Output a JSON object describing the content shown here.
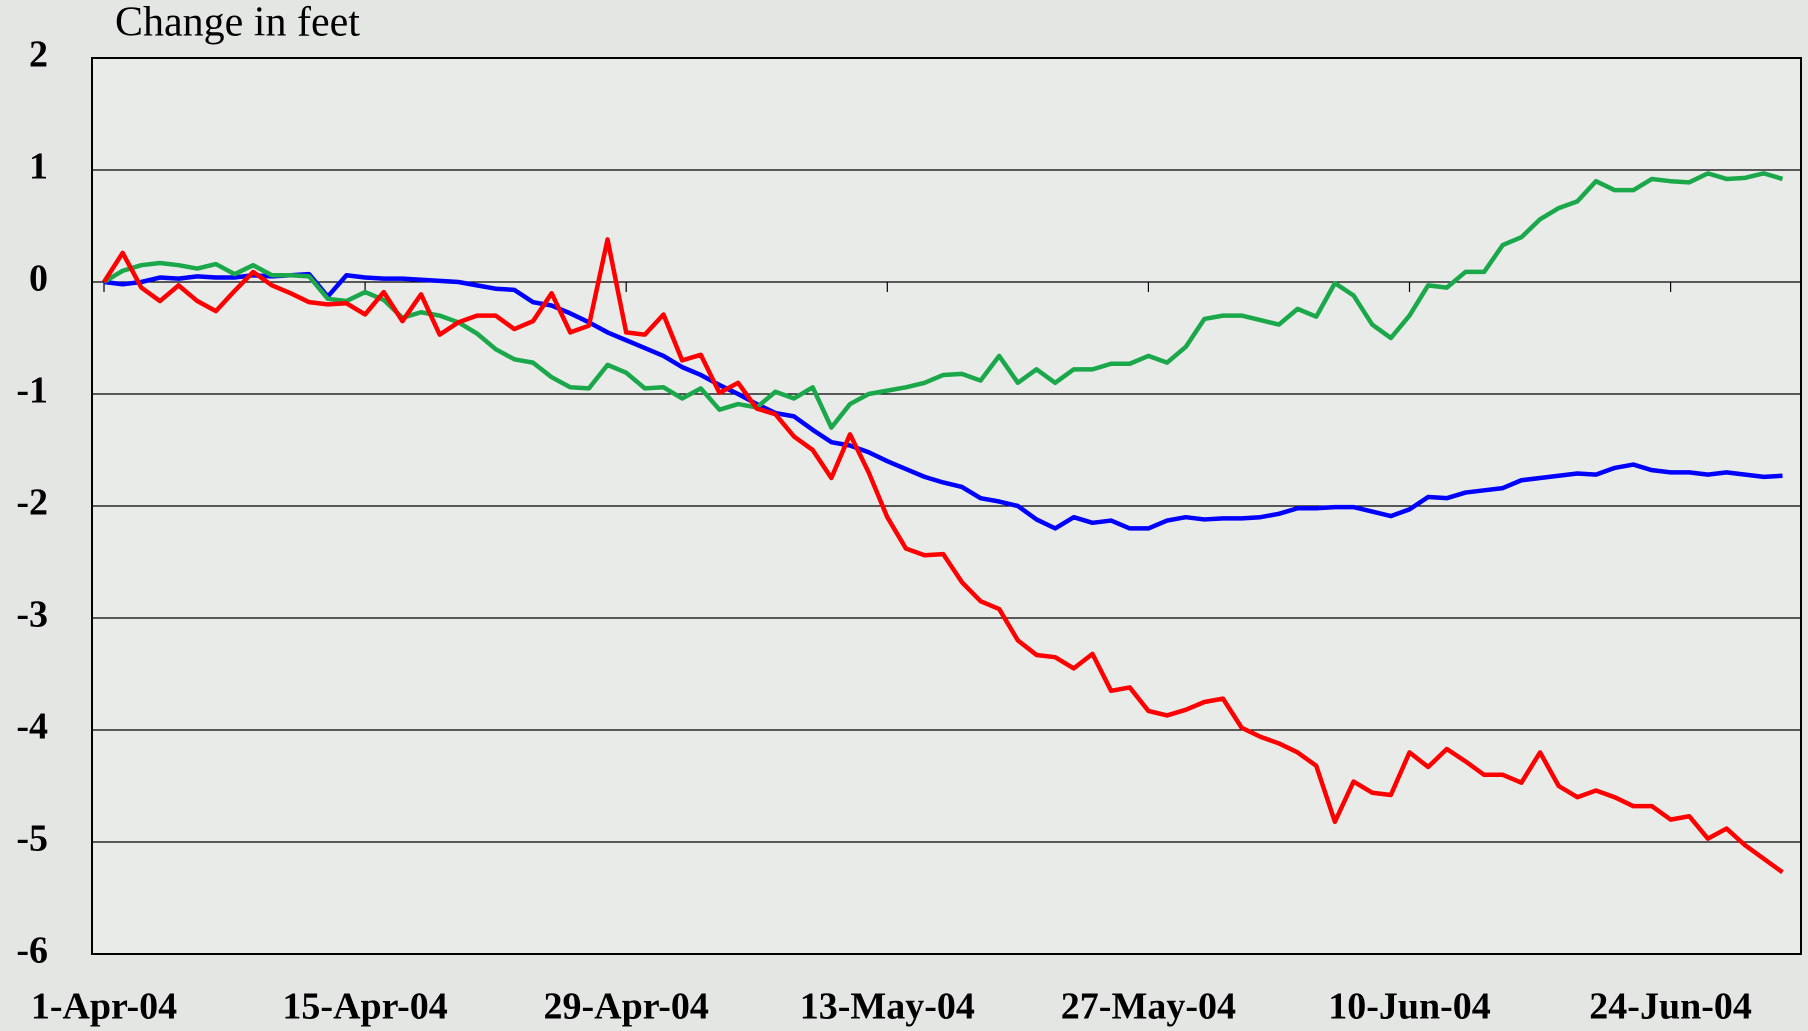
{
  "chart_data": {
    "type": "line",
    "ylabel": "Change in feet",
    "categories": [
      "1-Apr-04",
      null,
      null,
      null,
      null,
      null,
      null,
      null,
      null,
      null,
      null,
      null,
      null,
      null,
      "15-Apr-04",
      null,
      null,
      null,
      null,
      null,
      null,
      null,
      null,
      null,
      null,
      null,
      null,
      null,
      "29-Apr-04",
      null,
      null,
      null,
      null,
      null,
      null,
      null,
      null,
      null,
      null,
      null,
      null,
      null,
      "13-May-04",
      null,
      null,
      null,
      null,
      null,
      null,
      null,
      null,
      null,
      null,
      null,
      null,
      null,
      "27-May-04",
      null,
      null,
      null,
      null,
      null,
      null,
      null,
      null,
      null,
      null,
      null,
      null,
      null,
      "10-Jun-04",
      null,
      null,
      null,
      null,
      null,
      null,
      null,
      null,
      null,
      null,
      null,
      null,
      null,
      "24-Jun-04",
      null,
      null,
      null,
      null,
      null,
      null
    ],
    "series": [
      {
        "color": "#0000ff",
        "values": [
          0,
          -0.02,
          0,
          0.04,
          0.03,
          0.05,
          0.04,
          0.04,
          0.06,
          0.05,
          0.06,
          0.07,
          -0.13,
          0.06,
          0.04,
          0.03,
          0.03,
          0.02,
          0.01,
          0,
          -0.03,
          -0.06,
          -0.07,
          -0.18,
          -0.21,
          -0.28,
          -0.36,
          -0.45,
          -0.52,
          -0.59,
          -0.66,
          -0.76,
          -0.83,
          -0.92,
          -1.0,
          -1.09,
          -1.17,
          -1.2,
          -1.32,
          -1.43,
          -1.46,
          -1.52,
          -1.6,
          -1.67,
          -1.74,
          -1.79,
          -1.83,
          -1.93,
          -1.96,
          -2.0,
          -2.12,
          -2.2,
          -2.1,
          -2.15,
          -2.13,
          -2.2,
          -2.2,
          -2.13,
          -2.1,
          -2.12,
          -2.11,
          -2.11,
          -2.1,
          -2.07,
          -2.02,
          -2.02,
          -2.01,
          -2.01,
          -2.05,
          -2.09,
          -2.03,
          -1.92,
          -1.93,
          -1.88,
          -1.86,
          -1.84,
          -1.77,
          -1.75,
          -1.73,
          -1.71,
          -1.72,
          -1.66,
          -1.63,
          -1.68,
          -1.7,
          -1.7,
          -1.72,
          -1.7,
          -1.72,
          -1.74,
          -1.73
        ]
      },
      {
        "color": "#1aa84a",
        "values": [
          0,
          0.1,
          0.15,
          0.17,
          0.15,
          0.12,
          0.16,
          0.07,
          0.15,
          0.06,
          0.06,
          0.05,
          -0.15,
          -0.17,
          -0.09,
          -0.16,
          -0.32,
          -0.27,
          -0.3,
          -0.36,
          -0.46,
          -0.6,
          -0.69,
          -0.72,
          -0.85,
          -0.94,
          -0.95,
          -0.74,
          -0.81,
          -0.95,
          -0.94,
          -1.04,
          -0.95,
          -1.14,
          -1.09,
          -1.12,
          -0.98,
          -1.04,
          -0.94,
          -1.3,
          -1.09,
          -1.0,
          -0.97,
          -0.94,
          -0.9,
          -0.83,
          -0.82,
          -0.88,
          -0.66,
          -0.9,
          -0.78,
          -0.9,
          -0.78,
          -0.78,
          -0.73,
          -0.73,
          -0.66,
          -0.72,
          -0.58,
          -0.33,
          -0.3,
          -0.3,
          -0.34,
          -0.38,
          -0.24,
          -0.31,
          -0.01,
          -0.12,
          -0.38,
          -0.5,
          -0.3,
          -0.03,
          -0.05,
          0.09,
          0.09,
          0.33,
          0.4,
          0.56,
          0.66,
          0.72,
          0.9,
          0.82,
          0.82,
          0.92,
          0.9,
          0.89,
          0.97,
          0.92,
          0.93,
          0.97,
          0.92
        ]
      },
      {
        "color": "#ff0000",
        "values": [
          0,
          0.26,
          -0.05,
          -0.17,
          -0.03,
          -0.17,
          -0.26,
          -0.08,
          0.09,
          -0.03,
          -0.1,
          -0.18,
          -0.2,
          -0.19,
          -0.29,
          -0.09,
          -0.35,
          -0.11,
          -0.47,
          -0.36,
          -0.3,
          -0.3,
          -0.42,
          -0.35,
          -0.1,
          -0.45,
          -0.39,
          0.38,
          -0.45,
          -0.47,
          -0.29,
          -0.7,
          -0.65,
          -0.99,
          -0.9,
          -1.13,
          -1.18,
          -1.38,
          -1.5,
          -1.75,
          -1.36,
          -1.7,
          -2.1,
          -2.38,
          -2.44,
          -2.43,
          -2.68,
          -2.85,
          -2.92,
          -3.2,
          -3.33,
          -3.35,
          -3.45,
          -3.32,
          -3.65,
          -3.62,
          -3.83,
          -3.87,
          -3.82,
          -3.75,
          -3.72,
          -3.98,
          -4.06,
          -4.12,
          -4.2,
          -4.32,
          -4.82,
          -4.46,
          -4.56,
          -4.58,
          -4.2,
          -4.33,
          -4.17,
          -4.28,
          -4.4,
          -4.4,
          -4.47,
          -4.2,
          -4.5,
          -4.6,
          -4.54,
          -4.6,
          -4.68,
          -4.68,
          -4.8,
          -4.77,
          -4.97,
          -4.88,
          -5.03,
          -5.15,
          -5.27
        ]
      }
    ],
    "ylim": [
      -6,
      2
    ],
    "yticks": [
      -6,
      -5,
      -4,
      -3,
      -2,
      -1,
      0,
      1,
      2
    ],
    "grid": true
  }
}
